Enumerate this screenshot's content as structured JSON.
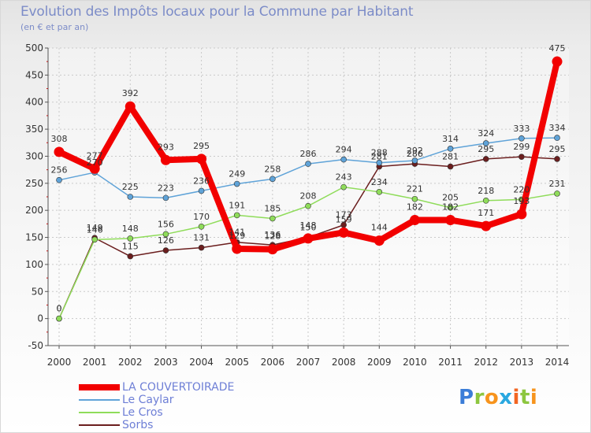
{
  "header": {
    "title": "Evolution des Impôts locaux pour la Commune par Habitant",
    "subtitle": "(en € et par an)"
  },
  "chart_data": {
    "type": "line",
    "title": "Evolution des Impôts locaux pour la Commune par Habitant",
    "subtitle": "(en € et par an)",
    "xlabel": "",
    "ylabel": "",
    "ylim": [
      -50,
      500
    ],
    "yticks": [
      -50,
      0,
      50,
      100,
      150,
      200,
      250,
      300,
      350,
      400,
      450,
      500
    ],
    "grid": true,
    "legend_position": "bottom-left",
    "categories": [
      "2000",
      "2001",
      "2002",
      "2003",
      "2004",
      "2005",
      "2006",
      "2007",
      "2008",
      "2009",
      "2010",
      "2011",
      "2012",
      "2013",
      "2014"
    ],
    "series": [
      {
        "name": "Sorbs",
        "color": "#6b1e1e",
        "values": [
          0,
          149,
          115,
          126,
          131,
          141,
          136,
          150,
          173,
          281,
          286,
          281,
          295,
          299,
          295
        ]
      },
      {
        "name": "Le Cros",
        "color": "#8fdc5a",
        "values": [
          0,
          146,
          148,
          156,
          170,
          191,
          185,
          208,
          243,
          234,
          221,
          205,
          218,
          220,
          231
        ]
      },
      {
        "name": "Le Caylar",
        "color": "#5fa3d8",
        "values": [
          256,
          270,
          225,
          223,
          236,
          249,
          258,
          286,
          294,
          288,
          292,
          314,
          324,
          333,
          334
        ]
      },
      {
        "name": "LA COUVERTOIRADE",
        "color": "#f20000",
        "values": [
          308,
          277,
          392,
          293,
          295,
          129,
          128,
          148,
          159,
          144,
          182,
          182,
          171,
          193,
          475
        ]
      }
    ]
  },
  "legend": {
    "items": [
      {
        "label": "LA COUVERTOIRADE",
        "color": "#f20000"
      },
      {
        "label": "Le Caylar",
        "color": "#5fa3d8"
      },
      {
        "label": "Le Cros",
        "color": "#8fdc5a"
      },
      {
        "label": "Sorbs",
        "color": "#6b1e1e"
      }
    ]
  },
  "logo": {
    "letters": [
      "P",
      "r",
      "o",
      "x",
      "i",
      "t",
      "i"
    ],
    "colors": [
      "#3b7dd8",
      "#8dc63f",
      "#f7941d",
      "#2aa8e0",
      "#f26522",
      "#8dc63f",
      "#f7941d"
    ]
  }
}
